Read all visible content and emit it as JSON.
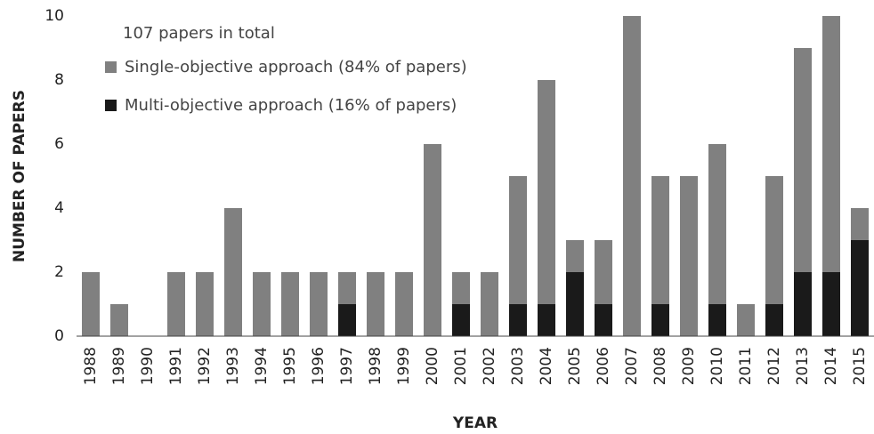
{
  "chart_data": {
    "type": "bar",
    "stacked": true,
    "annotation": "107 papers in total",
    "x_label": "YEAR",
    "y_label": "NUMBER OF PAPERS",
    "categories": [
      "1988",
      "1989",
      "1990",
      "1991",
      "1992",
      "1993",
      "1994",
      "1995",
      "1996",
      "1997",
      "1998",
      "1999",
      "2000",
      "2001",
      "2002",
      "2003",
      "2004",
      "2005",
      "2006",
      "2007",
      "2008",
      "2009",
      "2010",
      "2011",
      "2012",
      "2013",
      "2014",
      "2015"
    ],
    "series": [
      {
        "name": "Single-objective approach (84% of papers)",
        "color": "#808080",
        "values": [
          2,
          1,
          0,
          2,
          2,
          4,
          2,
          2,
          2,
          1,
          2,
          2,
          6,
          1,
          2,
          4,
          7,
          1,
          2,
          10,
          4,
          5,
          5,
          1,
          4,
          7,
          8,
          1
        ]
      },
      {
        "name": "Multi-objective approach (16% of papers)",
        "color": "#1a1a1a",
        "values": [
          0,
          0,
          0,
          0,
          0,
          0,
          0,
          0,
          0,
          1,
          0,
          0,
          0,
          1,
          0,
          1,
          1,
          2,
          1,
          0,
          1,
          0,
          1,
          0,
          1,
          2,
          2,
          3
        ]
      }
    ],
    "ylim": [
      0,
      10
    ],
    "yticks": [
      0,
      2,
      4,
      6,
      8,
      10
    ],
    "legend": "top-left"
  }
}
